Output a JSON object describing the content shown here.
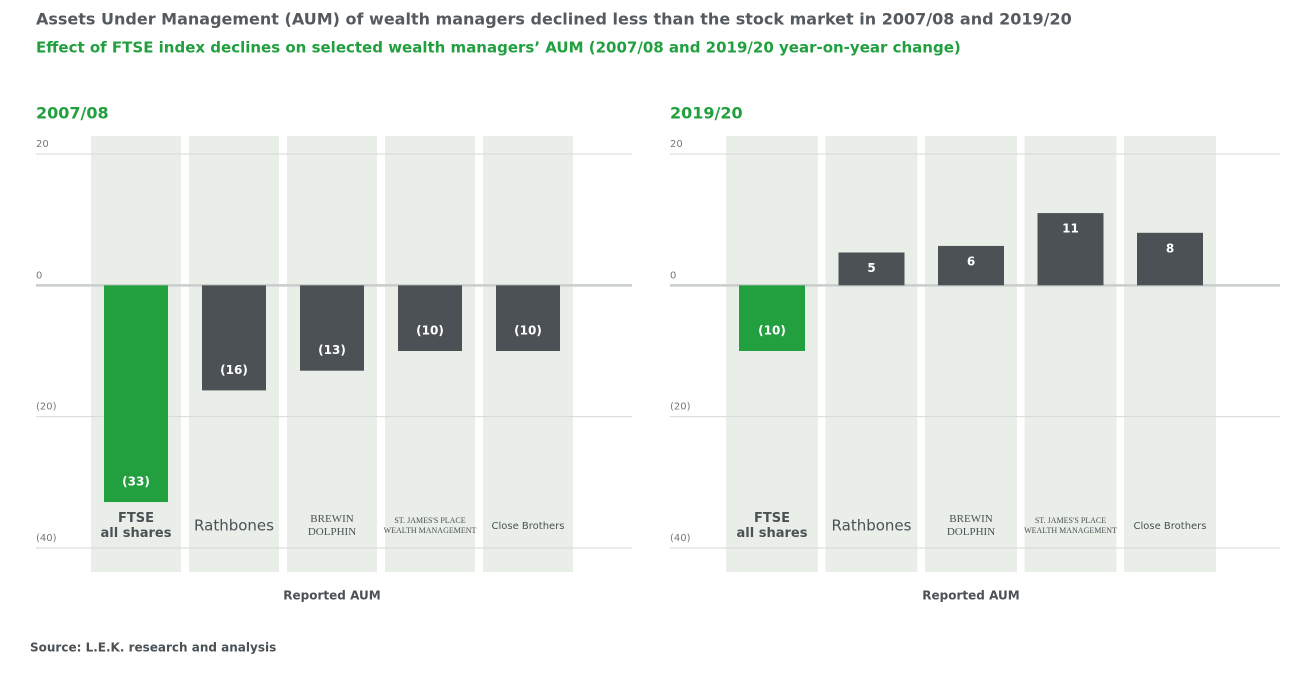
{
  "title": "Assets Under Management (AUM) of wealth managers declined less than the stock market in 2007/08 and 2019/20",
  "subtitle": "Effect of FTSE index declines on selected wealth managers’ AUM (2007/08 and 2019/20 year-on-year change)",
  "source": "Source: L.E.K. research and analysis",
  "chart_data": [
    {
      "type": "bar",
      "title": "2007/08",
      "x_label": "Reported AUM",
      "categories": [
        [
          "FTSE",
          "all shares"
        ],
        [
          "Rathbones"
        ],
        [
          "BREWIN",
          "DOLPHIN"
        ],
        [
          "ST. JAMES'S PLACE",
          "WEALTH MANAGEMENT"
        ],
        [
          "Close Brothers"
        ]
      ],
      "values": [
        -33,
        -16,
        -13,
        -10,
        -10
      ],
      "value_labels": [
        "(33)",
        "(16)",
        "(13)",
        "(10)",
        "(10)"
      ],
      "colors": [
        "#22a03f",
        "#4b5155",
        "#4b5155",
        "#4b5155",
        "#4b5155"
      ],
      "ylim": [
        -40,
        20
      ],
      "yticks": [
        20,
        0,
        {
          "value": -20,
          "label": "(20)"
        },
        {
          "value": -40,
          "label": "(40)"
        }
      ],
      "grid": true
    },
    {
      "type": "bar",
      "title": "2019/20",
      "x_label": "Reported AUM",
      "categories": [
        [
          "FTSE",
          "all shares"
        ],
        [
          "Rathbones"
        ],
        [
          "BREWIN",
          "DOLPHIN"
        ],
        [
          "ST. JAMES'S PLACE",
          "WEALTH MANAGEMENT"
        ],
        [
          "Close Brothers"
        ]
      ],
      "values": [
        -10,
        5,
        6,
        11,
        8
      ],
      "value_labels": [
        "(10)",
        "5",
        "6",
        "11",
        "8"
      ],
      "colors": [
        "#22a03f",
        "#4b5155",
        "#4b5155",
        "#4b5155",
        "#4b5155"
      ],
      "ylim": [
        -40,
        20
      ],
      "yticks": [
        20,
        0,
        {
          "value": -20,
          "label": "(20)"
        },
        {
          "value": -40,
          "label": "(40)"
        }
      ],
      "grid": true
    }
  ]
}
